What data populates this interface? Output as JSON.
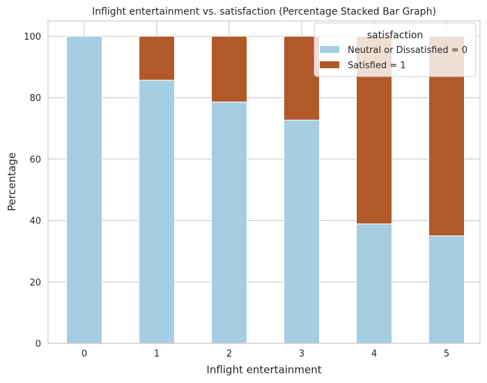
{
  "chart_data": {
    "type": "bar",
    "stacked": true,
    "title": "Inflight entertainment vs. satisfaction (Percentage Stacked Bar Graph)",
    "xlabel": "Inflight entertainment",
    "ylabel": "Percentage",
    "categories": [
      "0",
      "1",
      "2",
      "3",
      "4",
      "5"
    ],
    "ylim": [
      0,
      105
    ],
    "yticks": [
      0,
      20,
      40,
      60,
      80,
      100
    ],
    "grid": true,
    "legend": {
      "title": "satisfaction",
      "placement": "top-right"
    },
    "series": [
      {
        "name": "Neutral or Dissatisfied = 0",
        "color": "#a6cee3",
        "values": [
          100,
          85.7,
          78.6,
          72.7,
          38.9,
          35.0
        ]
      },
      {
        "name": "Satisfied = 1",
        "color": "#b15928",
        "values": [
          0,
          14.3,
          21.4,
          27.3,
          61.1,
          65.0
        ]
      }
    ]
  }
}
